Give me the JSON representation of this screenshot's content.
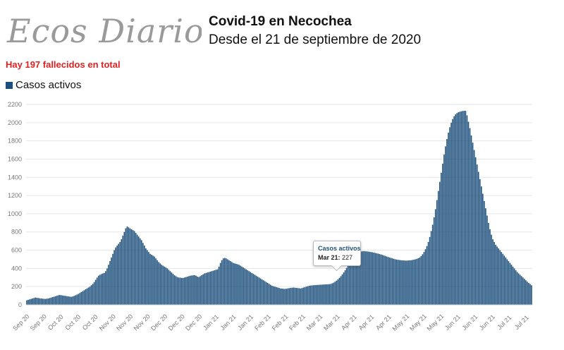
{
  "header": {
    "logo_text": "Ecos Diarios",
    "title": "Covid-19 en Necochea",
    "subtitle": "Desde el 21 de septiembre de 2020",
    "deaths_note": "Hay 197 fallecidos en total"
  },
  "legend": {
    "label": "Casos activos"
  },
  "tooltip": {
    "series": "Casos activos",
    "date": "Mar 21:",
    "value": "227"
  },
  "colors": {
    "bar": "#1c4f7c",
    "note": "#e32020",
    "grid": "#e6e6e6",
    "tick": "#777777",
    "logo": "#9a9a9a"
  },
  "chart_data": {
    "type": "bar",
    "title": "Covid-19 en Necochea",
    "subtitle": "Desde el 21 de septiembre de 2020",
    "xlabel": "",
    "ylabel": "",
    "ylim": [
      0,
      2200
    ],
    "yticks": [
      0,
      200,
      400,
      600,
      800,
      1000,
      1200,
      1400,
      1600,
      1800,
      2000,
      2200
    ],
    "grid": true,
    "legend": "top-left",
    "x_tick_labels": [
      "Sep 20",
      "Sep 20",
      "Oct 20",
      "Oct 20",
      "Oct 20",
      "Nov 20",
      "Nov 20",
      "Nov 20",
      "Dec 20",
      "Dec 20",
      "Dec 20",
      "Jan 21",
      "Jan 21",
      "Jan 21",
      "Feb 21",
      "Feb 21",
      "Feb 21",
      "Mar 21",
      "Mar 21",
      "Apr 21",
      "Apr 21",
      "Apr 21",
      "May 21",
      "May 21",
      "May 21",
      "Jun 21",
      "Jun 21",
      "Jun 21",
      "Jul 21",
      "Jul 21"
    ],
    "series": [
      {
        "name": "Casos activos",
        "values": [
          50,
          55,
          60,
          65,
          70,
          75,
          80,
          78,
          75,
          72,
          70,
          68,
          66,
          65,
          68,
          70,
          75,
          80,
          85,
          90,
          95,
          100,
          105,
          108,
          106,
          103,
          100,
          98,
          95,
          93,
          90,
          88,
          92,
          98,
          105,
          112,
          120,
          130,
          140,
          150,
          160,
          170,
          180,
          190,
          200,
          215,
          230,
          250,
          275,
          300,
          320,
          330,
          338,
          345,
          350,
          370,
          400,
          440,
          480,
          520,
          560,
          600,
          630,
          650,
          670,
          690,
          720,
          760,
          800,
          840,
          860,
          850,
          840,
          830,
          820,
          810,
          790,
          770,
          750,
          730,
          710,
          680,
          650,
          620,
          600,
          580,
          560,
          550,
          540,
          530,
          510,
          490,
          470,
          455,
          440,
          430,
          420,
          410,
          400,
          385,
          370,
          355,
          340,
          325,
          315,
          305,
          300,
          298,
          296,
          295,
          300,
          305,
          310,
          315,
          320,
          322,
          324,
          326,
          320,
          310,
          305,
          315,
          325,
          335,
          345,
          350,
          355,
          360,
          365,
          370,
          375,
          380,
          385,
          390,
          420,
          460,
          490,
          510,
          515,
          510,
          500,
          490,
          480,
          470,
          460,
          455,
          450,
          445,
          440,
          430,
          420,
          410,
          400,
          390,
          380,
          370,
          360,
          350,
          340,
          330,
          320,
          310,
          300,
          290,
          280,
          270,
          260,
          250,
          240,
          230,
          220,
          210,
          205,
          200,
          195,
          190,
          185,
          180,
          178,
          176,
          175,
          177,
          180,
          183,
          186,
          188,
          190,
          188,
          186,
          184,
          182,
          180,
          185,
          190,
          195,
          200,
          205,
          210,
          212,
          214,
          215,
          217,
          218,
          219,
          220,
          221,
          222,
          223,
          224,
          225,
          226,
          227,
          230,
          236,
          244,
          254,
          266,
          280,
          296,
          314,
          334,
          356,
          380,
          405,
          430,
          455,
          480,
          505,
          530,
          550,
          565,
          575,
          582,
          586,
          588,
          589,
          588,
          587,
          585,
          583,
          580,
          577,
          574,
          570,
          566,
          562,
          558,
          553,
          548,
          543,
          537,
          531,
          525,
          520,
          515,
          510,
          505,
          500,
          497,
          494,
          492,
          490,
          488,
          487,
          486,
          486,
          487,
          488,
          490,
          493,
          496,
          500,
          505,
          511,
          520,
          535,
          555,
          580,
          610,
          645,
          690,
          745,
          810,
          880,
          960,
          1050,
          1150,
          1250,
          1350,
          1450,
          1550,
          1650,
          1740,
          1820,
          1890,
          1950,
          2000,
          2040,
          2070,
          2090,
          2105,
          2115,
          2120,
          2125,
          2128,
          2130,
          2130,
          2080,
          2010,
          1940,
          1860,
          1780,
          1700,
          1620,
          1540,
          1460,
          1380,
          1300,
          1220,
          1140,
          1060,
          980,
          900,
          830,
          770,
          720,
          690,
          660,
          640,
          620,
          600,
          580,
          560,
          540,
          520,
          500,
          480,
          460,
          440,
          420,
          400,
          380,
          360,
          345,
          330,
          315,
          300,
          285,
          270,
          255,
          240,
          228,
          215
        ]
      }
    ]
  }
}
